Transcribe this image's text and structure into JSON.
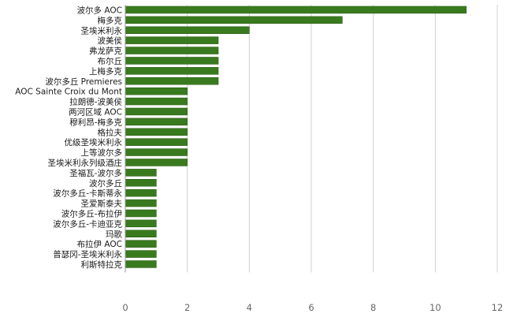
{
  "chart_data": {
    "type": "bar",
    "orientation": "horizontal",
    "title": "",
    "xlabel": "",
    "ylabel": "",
    "categories": [
      "波尔多 AOC",
      "梅多克",
      "圣埃米利永",
      "波美侯",
      "弗龙萨克",
      "布尔丘",
      "上梅多克",
      "波尔多丘 Premieres",
      "AOC Sainte Croix du Mont",
      "拉朗德-波美侯",
      "两河区域 AOC",
      "穆利昂-梅多克",
      "格拉夫",
      "优级圣埃米利永",
      "上等波尔多",
      "圣埃米利永列级酒庄",
      "圣福瓦-波尔多",
      "波尔多丘",
      "波尔多丘-卡斯蒂永",
      "圣爱斯泰夫",
      "波尔多丘-布拉伊",
      "波尔多丘-卡迪亚克",
      "玛歌",
      "布拉伊 AOC",
      "普瑟冈-圣埃米利永",
      "利斯特拉克"
    ],
    "values": [
      11,
      7,
      4,
      3,
      3,
      3,
      3,
      3,
      2,
      2,
      2,
      2,
      2,
      2,
      2,
      2,
      1,
      1,
      1,
      1,
      1,
      1,
      1,
      1,
      1,
      1
    ],
    "xlim": [
      0,
      12
    ],
    "xticks": [
      0,
      2,
      4,
      6,
      8,
      10,
      12
    ],
    "grid": "vertical",
    "legend": "none",
    "colors": {
      "bar_fill": "#3a7a1f",
      "bar_stroke": "#2b5e14",
      "grid": "#d0d0d0",
      "axis": "#999999"
    }
  }
}
